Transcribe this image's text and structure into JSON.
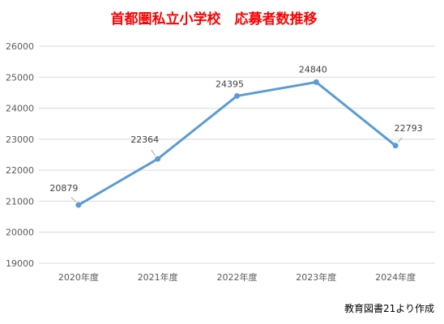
{
  "chart_data": {
    "type": "line",
    "title": "首都圏私立小学校　応募者数推移",
    "categories": [
      "2020年度",
      "2021年度",
      "2022年度",
      "2023年度",
      "2024年度"
    ],
    "series": [
      {
        "values": [
          20879,
          22364,
          24395,
          24840,
          22793
        ]
      }
    ],
    "data_labels": [
      "20879",
      "22364",
      "24395",
      "24840",
      "22793"
    ],
    "ylim": [
      19000,
      26000
    ],
    "yticks": [
      "19000",
      "20000",
      "21000",
      "22000",
      "23000",
      "24000",
      "25000",
      "26000"
    ],
    "grid": true,
    "legend": "none",
    "line_color": "#5b9bd5",
    "title_color": "#ff0000"
  },
  "source_note": "教育図書21より作成"
}
